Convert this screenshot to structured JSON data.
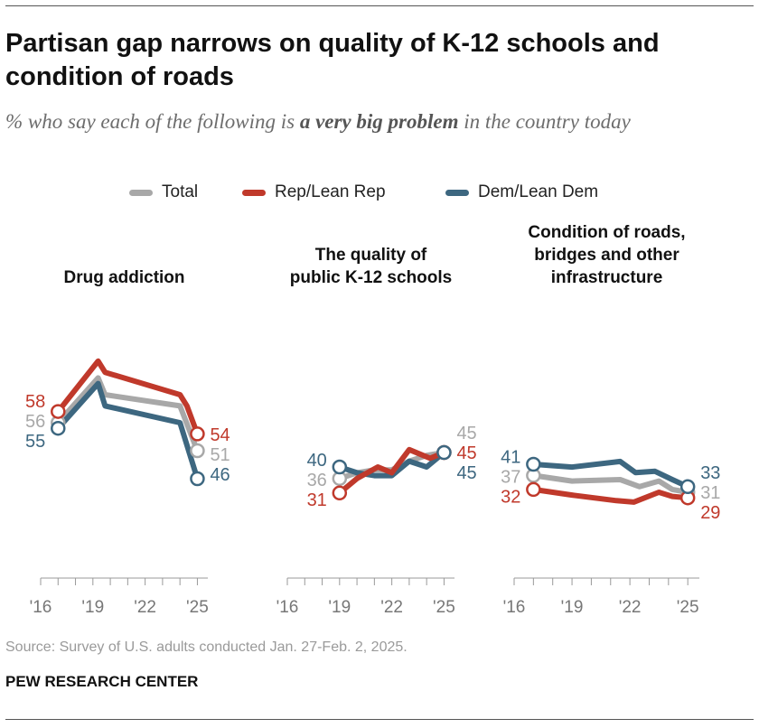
{
  "title": "Partisan gap narrows on quality of K-12 schools and condition of roads",
  "subtitle": {
    "before": "% who say each of the following is ",
    "emphasis": "a very big problem",
    "after": " in the country today"
  },
  "legend": [
    {
      "label": "Total",
      "color": "#a8a8a8"
    },
    {
      "label": "Rep/Lean Rep",
      "color": "#c0392b"
    },
    {
      "label": "Dem/Lean Dem",
      "color": "#3d6780"
    }
  ],
  "source": "Source: Survey of U.S. adults conducted Jan. 27-Feb. 2, 2025.",
  "brand": "PEW RESEARCH CENTER",
  "chart_data": [
    {
      "type": "line",
      "title": [
        "Drug addiction"
      ],
      "x_ticks": [
        "'16",
        "'19",
        "'22",
        "'25"
      ],
      "series": [
        {
          "name": "Total",
          "x": [
            2017.0,
            2019.3,
            2019.7,
            2024.0,
            2025.0
          ],
          "y": [
            56,
            64,
            61,
            59,
            51
          ],
          "start_label": "56",
          "end_label": "51"
        },
        {
          "name": "Rep/Lean Rep",
          "x": [
            2017.0,
            2019.3,
            2019.7,
            2024.0,
            2024.4,
            2025.0
          ],
          "y": [
            58,
            67,
            65,
            61,
            59,
            54
          ],
          "start_label": "58",
          "end_label": "54"
        },
        {
          "name": "Dem/Lean Dem",
          "x": [
            2017.0,
            2019.3,
            2019.7,
            2024.0,
            2025.0
          ],
          "y": [
            55,
            63,
            59,
            56,
            46
          ],
          "start_label": "55",
          "end_label": "46"
        }
      ]
    },
    {
      "type": "line",
      "title": [
        "The quality of",
        "public K-12 schools"
      ],
      "x_ticks": [
        "'16",
        "'19",
        "'22",
        "'25"
      ],
      "series": [
        {
          "name": "Total",
          "x": [
            2019.0,
            2020.0,
            2021.0,
            2022.0,
            2023.0,
            2024.0,
            2025.0
          ],
          "y": [
            36,
            38,
            39,
            39,
            42,
            44,
            45
          ],
          "start_label": "36",
          "end_label": "45"
        },
        {
          "name": "Rep/Lean Rep",
          "x": [
            2019.0,
            2020.0,
            2021.2,
            2022.0,
            2023.0,
            2024.2,
            2025.0
          ],
          "y": [
            31,
            36,
            40,
            38,
            46,
            43,
            45
          ],
          "start_label": "31",
          "end_label": "45"
        },
        {
          "name": "Dem/Lean Dem",
          "x": [
            2019.0,
            2020.0,
            2021.0,
            2022.0,
            2023.0,
            2024.0,
            2025.0
          ],
          "y": [
            40,
            38,
            37,
            37,
            42,
            40,
            45
          ],
          "start_label": "40",
          "end_label": "45"
        }
      ]
    },
    {
      "type": "line",
      "title": [
        "Condition of roads,",
        "bridges and other",
        "infrastructure"
      ],
      "x_ticks": [
        "'16",
        "'19",
        "'22",
        "'25"
      ],
      "series": [
        {
          "name": "Total",
          "x": [
            2017.0,
            2019.0,
            2021.5,
            2022.5,
            2023.5,
            2024.2,
            2025.0
          ],
          "y": [
            37,
            35,
            35.5,
            33,
            35,
            32,
            31
          ],
          "start_label": "37",
          "end_label": "31"
        },
        {
          "name": "Rep/Lean Rep",
          "x": [
            2017.0,
            2019.0,
            2021.3,
            2022.2,
            2023.5,
            2024.2,
            2025.0
          ],
          "y": [
            32,
            30,
            28,
            27.5,
            31,
            29.5,
            29
          ],
          "start_label": "32",
          "end_label": "29"
        },
        {
          "name": "Dem/Lean Dem",
          "x": [
            2017.0,
            2019.0,
            2021.5,
            2022.3,
            2023.3,
            2024.2,
            2025.0
          ],
          "y": [
            41,
            40,
            42,
            38,
            38.5,
            35.5,
            33
          ],
          "start_label": "41",
          "end_label": "33"
        }
      ]
    }
  ]
}
